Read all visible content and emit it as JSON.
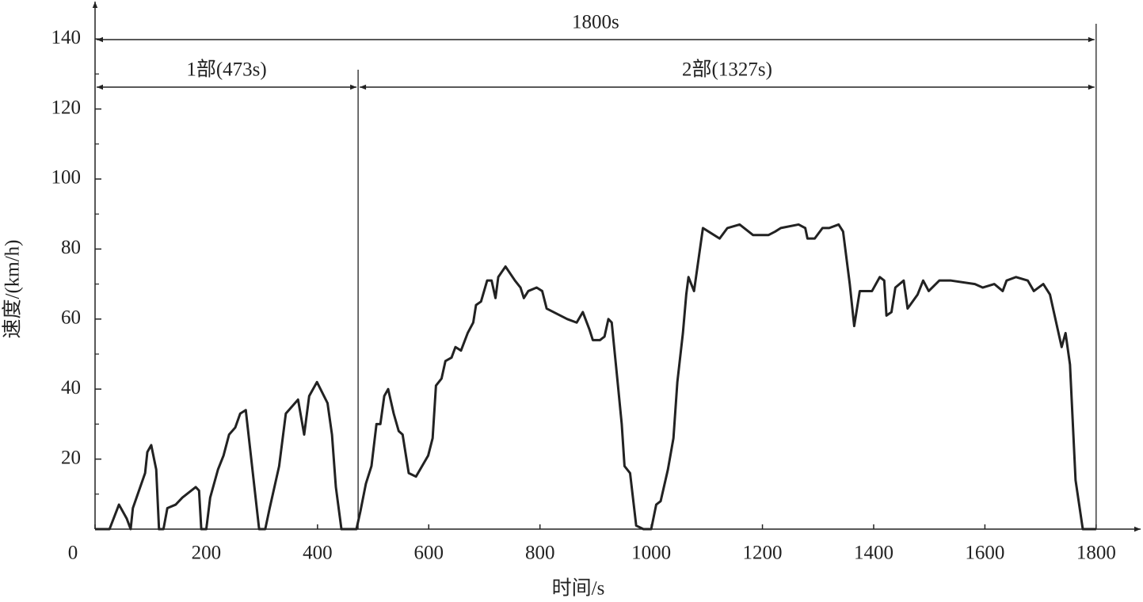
{
  "chart_data": {
    "type": "line",
    "x_label": "时间/s",
    "y_label": "速度/(km/h)",
    "xlim": [
      0,
      1880
    ],
    "ylim": [
      0,
      150
    ],
    "xticks": [
      0,
      200,
      400,
      600,
      800,
      1000,
      1200,
      1400,
      1600,
      1800
    ],
    "yticks": [
      20,
      40,
      60,
      80,
      100,
      120,
      140
    ],
    "yminor_ticks": [
      10,
      30,
      50,
      70,
      90,
      110,
      130
    ],
    "color": "#222222",
    "annotations": {
      "total": {
        "label": "1800s",
        "start": 0,
        "end": 1800
      },
      "phases": [
        {
          "label": "1部(473s)",
          "start": 0,
          "end": 473
        },
        {
          "label": "2部(1327s)",
          "start": 473,
          "end": 1800
        }
      ]
    },
    "x": [
      0,
      26,
      43,
      57,
      64,
      68,
      90,
      94,
      101,
      110,
      115,
      123,
      130,
      145,
      157,
      181,
      187,
      191,
      200,
      207,
      221,
      231,
      241,
      252,
      261,
      271,
      295,
      306,
      314,
      331,
      343,
      365,
      376,
      385,
      399,
      418,
      426,
      433,
      443,
      463,
      470,
      477,
      487,
      497,
      506,
      513,
      520,
      527,
      537,
      546,
      553,
      564,
      577,
      599,
      607,
      613,
      623,
      630,
      641,
      648,
      658,
      670,
      680,
      685,
      694,
      705,
      713,
      720,
      725,
      738,
      755,
      765,
      771,
      779,
      794,
      804,
      812,
      849,
      866,
      877,
      889,
      895,
      908,
      916,
      923,
      929,
      939,
      947,
      952,
      962,
      973,
      986,
      1000,
      1009,
      1017,
      1030,
      1040,
      1047,
      1057,
      1063,
      1067,
      1077,
      1093,
      1103,
      1123,
      1137,
      1159,
      1183,
      1211,
      1223,
      1233,
      1265,
      1277,
      1281,
      1294,
      1308,
      1320,
      1337,
      1345,
      1357,
      1365,
      1375,
      1397,
      1411,
      1419,
      1423,
      1432,
      1439,
      1454,
      1461,
      1479,
      1489,
      1499,
      1518,
      1539,
      1582,
      1596,
      1617,
      1632,
      1639,
      1656,
      1677,
      1688,
      1705,
      1717,
      1731,
      1738,
      1745,
      1753,
      1763,
      1776,
      1800
    ],
    "values": [
      0,
      0,
      7,
      3,
      0,
      6,
      16,
      22,
      24,
      17,
      0,
      0,
      6,
      7,
      9,
      12,
      11,
      0,
      0,
      9,
      17,
      21,
      27,
      29,
      33,
      34,
      0,
      0,
      6,
      18,
      33,
      37,
      27,
      38,
      42,
      36,
      27,
      12,
      0,
      0,
      0,
      5,
      13,
      18,
      30,
      30,
      38,
      40,
      33,
      28,
      27,
      16,
      15,
      21,
      26,
      41,
      43,
      48,
      49,
      52,
      51,
      56,
      59,
      64,
      65,
      71,
      71,
      66,
      72,
      75,
      71,
      69,
      66,
      68,
      69,
      68,
      63,
      60,
      59,
      62,
      57,
      54,
      54,
      55,
      60,
      59,
      43,
      30,
      18,
      16,
      1,
      0,
      0,
      7,
      8,
      17,
      26,
      42,
      56,
      67,
      72,
      68,
      86,
      85,
      83,
      86,
      87,
      84,
      84,
      85,
      86,
      87,
      86,
      83,
      83,
      86,
      86,
      87,
      85,
      70,
      58,
      68,
      68,
      72,
      71,
      61,
      62,
      69,
      71,
      63,
      67,
      71,
      68,
      71,
      71,
      70,
      69,
      70,
      68,
      71,
      72,
      71,
      68,
      70,
      67,
      57,
      52,
      56,
      47,
      14,
      0,
      0
    ]
  }
}
